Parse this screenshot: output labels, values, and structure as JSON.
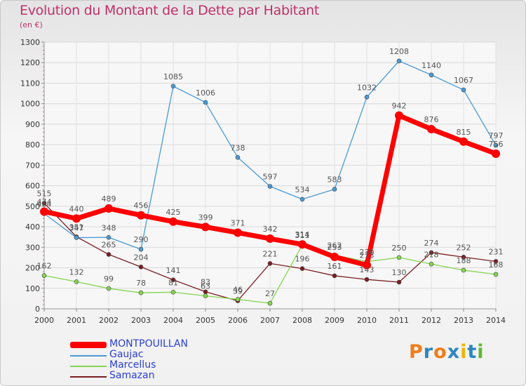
{
  "title": "Evolution du Montant de la Dette par Habitant",
  "subtitle": "(en €)",
  "logo": "Proxiti",
  "chart_data": {
    "type": "line",
    "x": [
      "2000",
      "2001",
      "2002",
      "2003",
      "2004",
      "2005",
      "2006",
      "2007",
      "2008",
      "2009",
      "2010",
      "2011",
      "2012",
      "2013",
      "2014"
    ],
    "ylim": [
      0,
      1300
    ],
    "yticks": [
      0,
      100,
      200,
      300,
      400,
      500,
      600,
      700,
      800,
      900,
      1000,
      1100,
      1200,
      1300
    ],
    "grid": true,
    "legend_position": "bottom-left",
    "series": [
      {
        "name": "MONTPOUILLAN",
        "color": "#ff0000",
        "text_color": "#2b3fd0",
        "values": [
          474,
          440,
          489,
          456,
          425,
          399,
          371,
          342,
          314,
          253,
          213,
          942,
          876,
          815,
          756
        ]
      },
      {
        "name": "Gaujac",
        "color": "#4a9ad4",
        "text_color": "#2b3fd0",
        "values": [
          464,
          347,
          348,
          290,
          1085,
          1006,
          738,
          597,
          534,
          583,
          1032,
          1208,
          1140,
          1067,
          797
        ]
      },
      {
        "name": "Marcellus",
        "color": "#86d452",
        "text_color": "#2b3fd0",
        "values": [
          162,
          132,
          99,
          78,
          81,
          63,
          46,
          27,
          311,
          262,
          230,
          250,
          218,
          188,
          168
        ]
      },
      {
        "name": "Samazan",
        "color": "#7a1e22",
        "text_color": "#2b3fd0",
        "values": [
          515,
          351,
          265,
          204,
          141,
          83,
          39,
          221,
          196,
          161,
          143,
          130,
          274,
          252,
          231
        ]
      }
    ]
  }
}
